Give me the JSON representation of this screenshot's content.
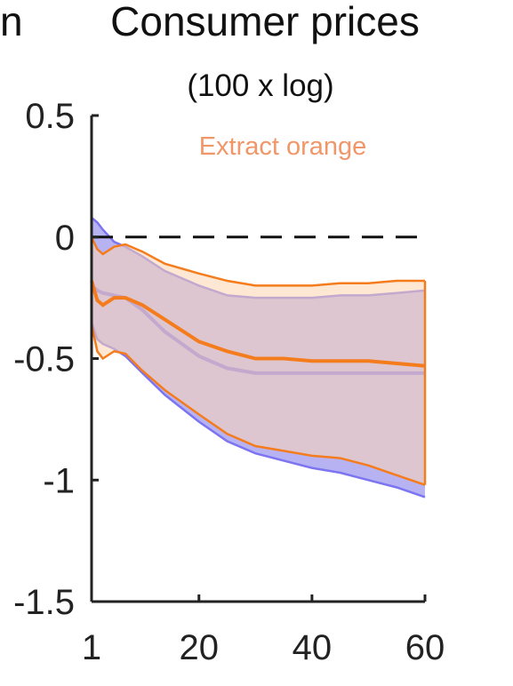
{
  "chart_data": {
    "type": "line",
    "title": "Consumer prices",
    "subtitle": "(100 x log)",
    "cut_label_left": "n",
    "annotation": {
      "text": "Extract orange",
      "color": "#f0976a"
    },
    "xlim": [
      1,
      60
    ],
    "ylim": [
      -1.5,
      0.5
    ],
    "xticks": [
      1,
      20,
      40,
      60
    ],
    "yticks": [
      0.5,
      0,
      -0.5,
      -1,
      -1.5
    ],
    "xtick_labels": [
      "1",
      "20",
      "40",
      "60"
    ],
    "ytick_labels": [
      "0.5",
      "0",
      "-0.5",
      "-1",
      "-1.5"
    ],
    "zero_line": {
      "y": 0,
      "style": "dashed",
      "color": "#111111"
    },
    "grid": false,
    "legend": "none",
    "series": [
      {
        "color": "#7c74f0",
        "band_color": "#b7b3f3",
        "x": [
          1,
          2,
          3,
          5,
          7,
          10,
          14,
          20,
          25,
          30,
          35,
          40,
          45,
          50,
          55,
          60
        ],
        "lower": [
          -0.35,
          -0.42,
          -0.44,
          -0.46,
          -0.49,
          -0.56,
          -0.65,
          -0.76,
          -0.84,
          -0.89,
          -0.92,
          -0.95,
          -0.97,
          -1.0,
          -1.03,
          -1.07
        ],
        "mid": [
          -0.2,
          -0.22,
          -0.23,
          -0.24,
          -0.25,
          -0.3,
          -0.39,
          -0.49,
          -0.54,
          -0.56,
          -0.56,
          -0.56,
          -0.56,
          -0.56,
          -0.56,
          -0.56
        ],
        "upper": [
          0.08,
          0.06,
          0.03,
          -0.02,
          -0.04,
          -0.08,
          -0.14,
          -0.2,
          -0.24,
          -0.25,
          -0.25,
          -0.25,
          -0.24,
          -0.24,
          -0.23,
          -0.22
        ]
      },
      {
        "color": "#f57c1c",
        "band_color": "#fdd6b0",
        "x": [
          1,
          2,
          3,
          5,
          7,
          10,
          14,
          20,
          25,
          30,
          35,
          40,
          45,
          50,
          55,
          60
        ],
        "lower": [
          -0.36,
          -0.47,
          -0.5,
          -0.47,
          -0.48,
          -0.55,
          -0.63,
          -0.73,
          -0.81,
          -0.86,
          -0.88,
          -0.9,
          -0.91,
          -0.94,
          -0.98,
          -1.02
        ],
        "mid": [
          -0.18,
          -0.26,
          -0.28,
          -0.25,
          -0.25,
          -0.28,
          -0.34,
          -0.43,
          -0.47,
          -0.5,
          -0.5,
          -0.51,
          -0.51,
          -0.51,
          -0.52,
          -0.53
        ],
        "upper": [
          0.0,
          -0.05,
          -0.07,
          -0.04,
          -0.03,
          -0.06,
          -0.11,
          -0.15,
          -0.18,
          -0.2,
          -0.2,
          -0.2,
          -0.19,
          -0.19,
          -0.18,
          -0.18
        ]
      }
    ]
  }
}
